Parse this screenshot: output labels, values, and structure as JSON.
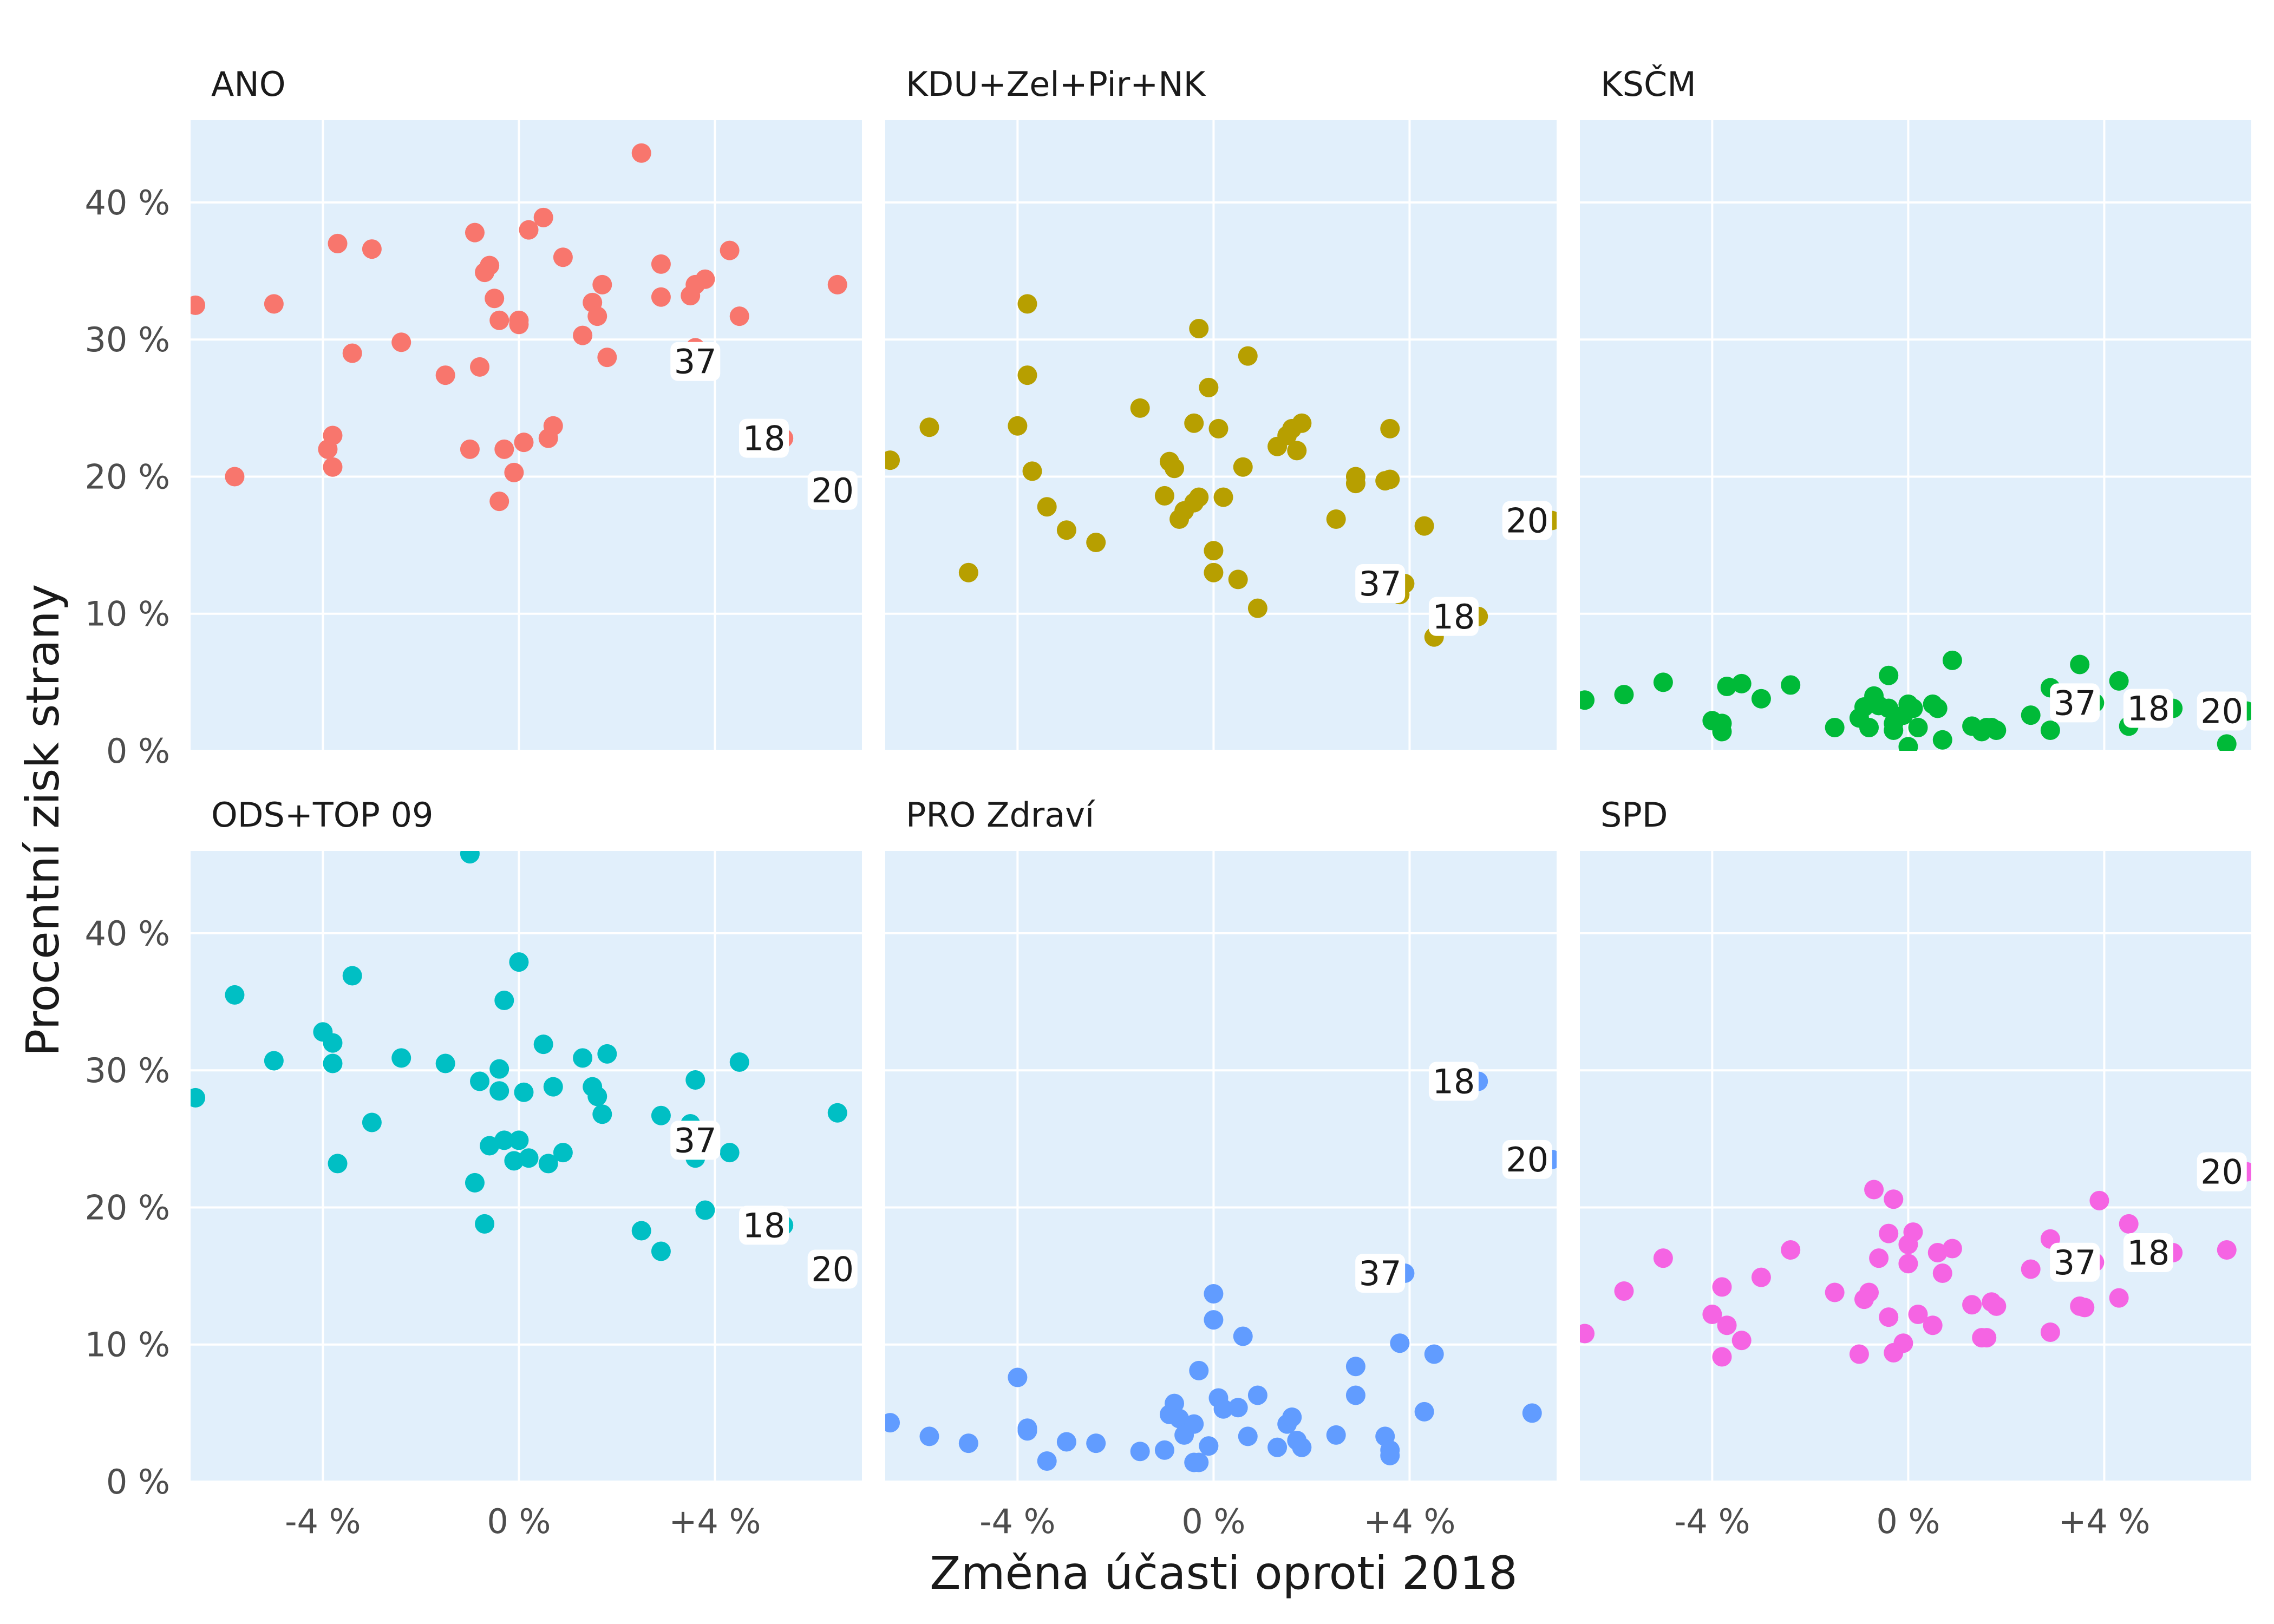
{
  "chart_data": {
    "type": "scatter",
    "xlabel": "Změna účasti oproti 2018",
    "ylabel": "Procentní zisk strany",
    "xlim": [
      -6.7,
      7.0
    ],
    "ylim": [
      0,
      46
    ],
    "x_ticks": [
      -4,
      0,
      4
    ],
    "x_tick_labels": [
      "-4 %",
      "0 %",
      "+4 %"
    ],
    "y_ticks": [
      0,
      10,
      20,
      30,
      40
    ],
    "y_tick_labels": [
      "0 %",
      "10 %",
      "20 %",
      "30 %",
      "40 %"
    ],
    "grid": true,
    "legend": "none",
    "panels": [
      {
        "name": "ANO",
        "color": "#f8766d",
        "points": [
          [
            -6.6,
            32.5
          ],
          [
            -5.8,
            20
          ],
          [
            -5.0,
            32.6
          ],
          [
            -3.9,
            22
          ],
          [
            -3.8,
            23
          ],
          [
            -3.8,
            20.7
          ],
          [
            -3.7,
            37
          ],
          [
            -3.4,
            29
          ],
          [
            -3.0,
            36.6
          ],
          [
            -2.4,
            29.8
          ],
          [
            -1.5,
            27.4
          ],
          [
            -1.0,
            22
          ],
          [
            -0.9,
            37.8
          ],
          [
            -0.8,
            28
          ],
          [
            -0.7,
            34.9
          ],
          [
            -0.6,
            35.4
          ],
          [
            -0.5,
            33
          ],
          [
            -0.4,
            31.4
          ],
          [
            -0.4,
            18.2
          ],
          [
            -0.3,
            22
          ],
          [
            -0.1,
            20.3
          ],
          [
            0.0,
            31.4
          ],
          [
            0.0,
            31.1
          ],
          [
            0.1,
            22.5
          ],
          [
            0.2,
            38
          ],
          [
            0.5,
            38.9
          ],
          [
            0.6,
            22.8
          ],
          [
            0.7,
            23.7
          ],
          [
            0.9,
            36
          ],
          [
            1.3,
            30.3
          ],
          [
            1.5,
            32.7
          ],
          [
            1.6,
            31.7
          ],
          [
            1.7,
            34
          ],
          [
            1.8,
            28.7
          ],
          [
            2.5,
            43.6
          ],
          [
            2.9,
            33.1
          ],
          [
            2.9,
            35.5
          ],
          [
            3.5,
            33.2
          ],
          [
            3.6,
            34
          ],
          [
            3.6,
            29.4
          ],
          [
            3.8,
            34.4
          ],
          [
            3.9,
            28.4
          ],
          [
            4.3,
            36.5
          ],
          [
            4.5,
            31.7
          ],
          [
            5.4,
            22.8
          ],
          [
            6.5,
            34
          ],
          [
            6.7,
            19
          ]
        ],
        "labels": [
          {
            "text": "37",
            "x": 3.6,
            "y": 28.4
          },
          {
            "text": "18",
            "x": 5.0,
            "y": 22.8
          },
          {
            "text": "20",
            "x": 6.4,
            "y": 19.0
          }
        ]
      },
      {
        "name": "KDU+Zel+Pir+NK",
        "color": "#b79f00",
        "points": [
          [
            -6.6,
            21.2
          ],
          [
            -5.8,
            23.6
          ],
          [
            -5.0,
            13
          ],
          [
            -4.0,
            23.7
          ],
          [
            -3.8,
            32.6
          ],
          [
            -3.8,
            27.4
          ],
          [
            -3.7,
            20.4
          ],
          [
            -3.4,
            17.8
          ],
          [
            -3.0,
            16.1
          ],
          [
            -2.4,
            15.2
          ],
          [
            -1.5,
            25
          ],
          [
            -1.0,
            18.6
          ],
          [
            -0.9,
            21.1
          ],
          [
            -0.8,
            20.6
          ],
          [
            -0.7,
            16.9
          ],
          [
            -0.6,
            17.5
          ],
          [
            -0.4,
            18.1
          ],
          [
            -0.4,
            23.9
          ],
          [
            -0.3,
            18.5
          ],
          [
            -0.3,
            30.8
          ],
          [
            -0.1,
            26.5
          ],
          [
            0.0,
            13
          ],
          [
            0.0,
            14.6
          ],
          [
            0.1,
            23.5
          ],
          [
            0.2,
            18.5
          ],
          [
            0.5,
            12.5
          ],
          [
            0.6,
            20.7
          ],
          [
            0.7,
            28.8
          ],
          [
            0.9,
            10.4
          ],
          [
            1.3,
            22.2
          ],
          [
            1.5,
            23
          ],
          [
            1.6,
            23.5
          ],
          [
            1.7,
            21.9
          ],
          [
            1.8,
            23.9
          ],
          [
            2.5,
            16.9
          ],
          [
            2.9,
            20
          ],
          [
            2.9,
            19.5
          ],
          [
            3.5,
            19.7
          ],
          [
            3.6,
            19.8
          ],
          [
            3.6,
            23.5
          ],
          [
            3.8,
            11.4
          ],
          [
            3.9,
            12.2
          ],
          [
            4.3,
            16.4
          ],
          [
            4.5,
            8.3
          ],
          [
            5.4,
            9.8
          ],
          [
            6.9,
            16.8
          ]
        ],
        "labels": [
          {
            "text": "37",
            "x": 3.4,
            "y": 12.2
          },
          {
            "text": "18",
            "x": 4.9,
            "y": 9.8
          },
          {
            "text": "20",
            "x": 6.4,
            "y": 16.8
          }
        ]
      },
      {
        "name": "KSČM",
        "color": "#00ba38",
        "points": [
          [
            -6.6,
            3.7
          ],
          [
            -5.8,
            4.1
          ],
          [
            -5.0,
            5
          ],
          [
            -4.0,
            2.2
          ],
          [
            -3.8,
            2
          ],
          [
            -3.8,
            1.4
          ],
          [
            -3.7,
            4.7
          ],
          [
            -3.4,
            4.9
          ],
          [
            -3.0,
            3.8
          ],
          [
            -2.4,
            4.8
          ],
          [
            -1.5,
            1.7
          ],
          [
            -1.0,
            2.4
          ],
          [
            -0.9,
            3.2
          ],
          [
            -0.8,
            1.7
          ],
          [
            -0.7,
            4
          ],
          [
            -0.6,
            3.3
          ],
          [
            -0.4,
            5.5
          ],
          [
            -0.4,
            3.1
          ],
          [
            -0.3,
            1.5
          ],
          [
            -0.3,
            2
          ],
          [
            -0.1,
            2.6
          ],
          [
            0.0,
            3.4
          ],
          [
            0.0,
            0.3
          ],
          [
            0.1,
            3.1
          ],
          [
            0.2,
            1.7
          ],
          [
            0.5,
            3.4
          ],
          [
            0.6,
            3.1
          ],
          [
            0.7,
            0.8
          ],
          [
            0.9,
            6.6
          ],
          [
            1.3,
            1.8
          ],
          [
            1.5,
            1.4
          ],
          [
            1.6,
            1.7
          ],
          [
            1.7,
            1.7
          ],
          [
            1.8,
            1.5
          ],
          [
            2.5,
            2.6
          ],
          [
            2.9,
            1.5
          ],
          [
            2.9,
            4.6
          ],
          [
            3.5,
            6.3
          ],
          [
            3.6,
            3.3
          ],
          [
            3.6,
            4
          ],
          [
            3.8,
            3.5
          ],
          [
            4.3,
            5.1
          ],
          [
            4.5,
            1.8
          ],
          [
            5.4,
            3.1
          ],
          [
            6.5,
            0.5
          ],
          [
            6.9,
            2.9
          ]
        ],
        "labels": [
          {
            "text": "37",
            "x": 3.4,
            "y": 3.5
          },
          {
            "text": "18",
            "x": 4.9,
            "y": 3.1
          },
          {
            "text": "20",
            "x": 6.4,
            "y": 2.9
          }
        ]
      },
      {
        "name": "ODS+TOP 09",
        "color": "#00bfc4",
        "points": [
          [
            -6.6,
            28
          ],
          [
            -5.8,
            35.5
          ],
          [
            -5.0,
            30.7
          ],
          [
            -4.0,
            32.8
          ],
          [
            -3.8,
            32
          ],
          [
            -3.8,
            30.5
          ],
          [
            -3.7,
            23.2
          ],
          [
            -3.4,
            36.9
          ],
          [
            -3.0,
            26.2
          ],
          [
            -2.4,
            30.9
          ],
          [
            -1.5,
            30.5
          ],
          [
            -1.0,
            45.8
          ],
          [
            -0.9,
            21.8
          ],
          [
            -0.8,
            29.2
          ],
          [
            -0.7,
            18.8
          ],
          [
            -0.6,
            24.5
          ],
          [
            -0.4,
            30.1
          ],
          [
            -0.4,
            28.5
          ],
          [
            -0.3,
            24.9
          ],
          [
            -0.3,
            35.1
          ],
          [
            -0.1,
            23.4
          ],
          [
            0.0,
            37.9
          ],
          [
            0.0,
            24.9
          ],
          [
            0.1,
            28.4
          ],
          [
            0.2,
            23.6
          ],
          [
            0.5,
            31.9
          ],
          [
            0.6,
            23.2
          ],
          [
            0.7,
            28.8
          ],
          [
            0.9,
            24
          ],
          [
            1.3,
            30.9
          ],
          [
            1.5,
            28.8
          ],
          [
            1.6,
            28.1
          ],
          [
            1.7,
            26.8
          ],
          [
            1.8,
            31.2
          ],
          [
            2.5,
            18.3
          ],
          [
            2.9,
            16.8
          ],
          [
            2.9,
            26.7
          ],
          [
            3.5,
            26.1
          ],
          [
            3.6,
            29.3
          ],
          [
            3.6,
            23.6
          ],
          [
            3.8,
            19.8
          ],
          [
            3.9,
            24.9
          ],
          [
            4.3,
            24
          ],
          [
            4.5,
            30.6
          ],
          [
            5.4,
            18.7
          ],
          [
            6.5,
            26.9
          ],
          [
            6.7,
            15.5
          ]
        ],
        "labels": [
          {
            "text": "37",
            "x": 3.6,
            "y": 24.9
          },
          {
            "text": "18",
            "x": 5.0,
            "y": 18.7
          },
          {
            "text": "20",
            "x": 6.4,
            "y": 15.5
          }
        ]
      },
      {
        "name": "PRO Zdraví",
        "color": "#619cff",
        "points": [
          [
            -6.6,
            4.3
          ],
          [
            -5.8,
            3.3
          ],
          [
            -5.0,
            2.8
          ],
          [
            -4.0,
            7.6
          ],
          [
            -3.8,
            3.9
          ],
          [
            -3.8,
            3.7
          ],
          [
            -3.4,
            1.5
          ],
          [
            -3.0,
            2.9
          ],
          [
            -2.4,
            2.8
          ],
          [
            -1.5,
            2.2
          ],
          [
            -1.0,
            2.3
          ],
          [
            -0.9,
            4.9
          ],
          [
            -0.8,
            5.7
          ],
          [
            -0.7,
            4.6
          ],
          [
            -0.6,
            3.4
          ],
          [
            -0.4,
            1.4
          ],
          [
            -0.4,
            4.2
          ],
          [
            -0.3,
            8.1
          ],
          [
            -0.3,
            1.4
          ],
          [
            -0.1,
            2.6
          ],
          [
            0.0,
            11.8
          ],
          [
            0.0,
            13.7
          ],
          [
            0.1,
            6.1
          ],
          [
            0.2,
            5.3
          ],
          [
            0.5,
            5.4
          ],
          [
            0.6,
            10.6
          ],
          [
            0.7,
            3.3
          ],
          [
            0.9,
            6.3
          ],
          [
            1.3,
            2.5
          ],
          [
            1.5,
            4.2
          ],
          [
            1.6,
            4.7
          ],
          [
            1.7,
            3
          ],
          [
            1.8,
            2.5
          ],
          [
            2.5,
            3.4
          ],
          [
            2.9,
            8.4
          ],
          [
            2.9,
            6.3
          ],
          [
            3.5,
            3.3
          ],
          [
            3.6,
            1.9
          ],
          [
            3.6,
            2.3
          ],
          [
            3.8,
            10.1
          ],
          [
            3.9,
            15.2
          ],
          [
            4.3,
            5.1
          ],
          [
            4.5,
            9.3
          ],
          [
            5.4,
            29.2
          ],
          [
            6.5,
            5
          ],
          [
            6.9,
            23.5
          ]
        ],
        "labels": [
          {
            "text": "37",
            "x": 3.4,
            "y": 15.2
          },
          {
            "text": "18",
            "x": 4.9,
            "y": 29.2
          },
          {
            "text": "20",
            "x": 6.4,
            "y": 23.5
          }
        ]
      },
      {
        "name": "SPD",
        "color": "#f564e3",
        "points": [
          [
            -6.6,
            10.8
          ],
          [
            -5.8,
            13.9
          ],
          [
            -5.0,
            16.3
          ],
          [
            -4.0,
            12.2
          ],
          [
            -3.8,
            14.2
          ],
          [
            -3.8,
            9.1
          ],
          [
            -3.7,
            11.4
          ],
          [
            -3.4,
            10.3
          ],
          [
            -3.0,
            14.9
          ],
          [
            -2.4,
            16.9
          ],
          [
            -1.5,
            13.8
          ],
          [
            -1.0,
            9.3
          ],
          [
            -0.9,
            13.3
          ],
          [
            -0.8,
            13.8
          ],
          [
            -0.7,
            21.3
          ],
          [
            -0.6,
            16.3
          ],
          [
            -0.4,
            12
          ],
          [
            -0.4,
            18.1
          ],
          [
            -0.3,
            20.6
          ],
          [
            -0.3,
            9.4
          ],
          [
            -0.1,
            10.1
          ],
          [
            0.0,
            17.3
          ],
          [
            0.0,
            15.9
          ],
          [
            0.1,
            18.2
          ],
          [
            0.2,
            12.2
          ],
          [
            0.5,
            11.4
          ],
          [
            0.6,
            16.7
          ],
          [
            0.7,
            15.2
          ],
          [
            0.9,
            17
          ],
          [
            1.3,
            12.9
          ],
          [
            1.5,
            10.5
          ],
          [
            1.6,
            10.5
          ],
          [
            1.7,
            13.1
          ],
          [
            1.8,
            12.8
          ],
          [
            2.5,
            15.5
          ],
          [
            2.9,
            10.9
          ],
          [
            2.9,
            17.7
          ],
          [
            3.5,
            12.8
          ],
          [
            3.6,
            12.7
          ],
          [
            3.8,
            16
          ],
          [
            3.9,
            20.5
          ],
          [
            4.3,
            13.4
          ],
          [
            4.5,
            18.8
          ],
          [
            5.4,
            16.7
          ],
          [
            6.5,
            16.9
          ],
          [
            6.9,
            22.6
          ]
        ],
        "labels": [
          {
            "text": "37",
            "x": 3.4,
            "y": 16.0
          },
          {
            "text": "18",
            "x": 4.9,
            "y": 16.7
          },
          {
            "text": "20",
            "x": 6.4,
            "y": 22.6
          }
        ]
      }
    ]
  }
}
